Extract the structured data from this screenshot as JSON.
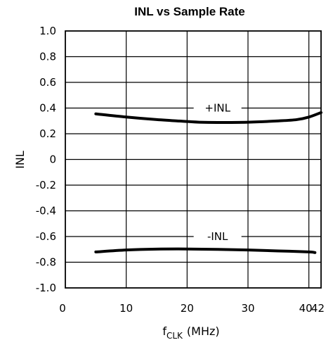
{
  "chart_data": {
    "type": "line",
    "title": "INL vs Sample Rate",
    "xlabel": "f",
    "xlabel_sub": "CLK",
    "xlabel_unit": "(MHz)",
    "ylabel": "INL",
    "xlim": [
      0,
      42
    ],
    "ylim": [
      -1.0,
      1.0
    ],
    "x_ticks": [
      0,
      10,
      20,
      30,
      40,
      42
    ],
    "x_tick_labels": [
      "0",
      "10",
      "20",
      "30",
      "40",
      "42"
    ],
    "y_ticks": [
      1.0,
      0.8,
      0.6,
      0.4,
      0.2,
      0,
      -0.2,
      -0.4,
      -0.6,
      -0.8,
      -1.0
    ],
    "y_tick_labels": [
      "1.0",
      "0.8",
      "0.6",
      "0.4",
      "0.2",
      "0",
      "-0.2",
      "-0.4",
      "-0.6",
      "-0.8",
      "-1.0"
    ],
    "grid": true,
    "series": [
      {
        "name": "+INL",
        "x": [
          5,
          10,
          15,
          20,
          22,
          25,
          30,
          35,
          38,
          40,
          42
        ],
        "y": [
          0.355,
          0.33,
          0.31,
          0.295,
          0.29,
          0.288,
          0.29,
          0.3,
          0.31,
          0.33,
          0.365
        ],
        "label_at": [
          25,
          0.4
        ]
      },
      {
        "name": "-INL",
        "x": [
          5,
          10,
          15,
          20,
          25,
          30,
          35,
          40,
          41
        ],
        "y": [
          -0.72,
          -0.705,
          -0.698,
          -0.697,
          -0.7,
          -0.705,
          -0.712,
          -0.72,
          -0.725
        ],
        "label_at": [
          25,
          -0.6
        ]
      }
    ]
  }
}
